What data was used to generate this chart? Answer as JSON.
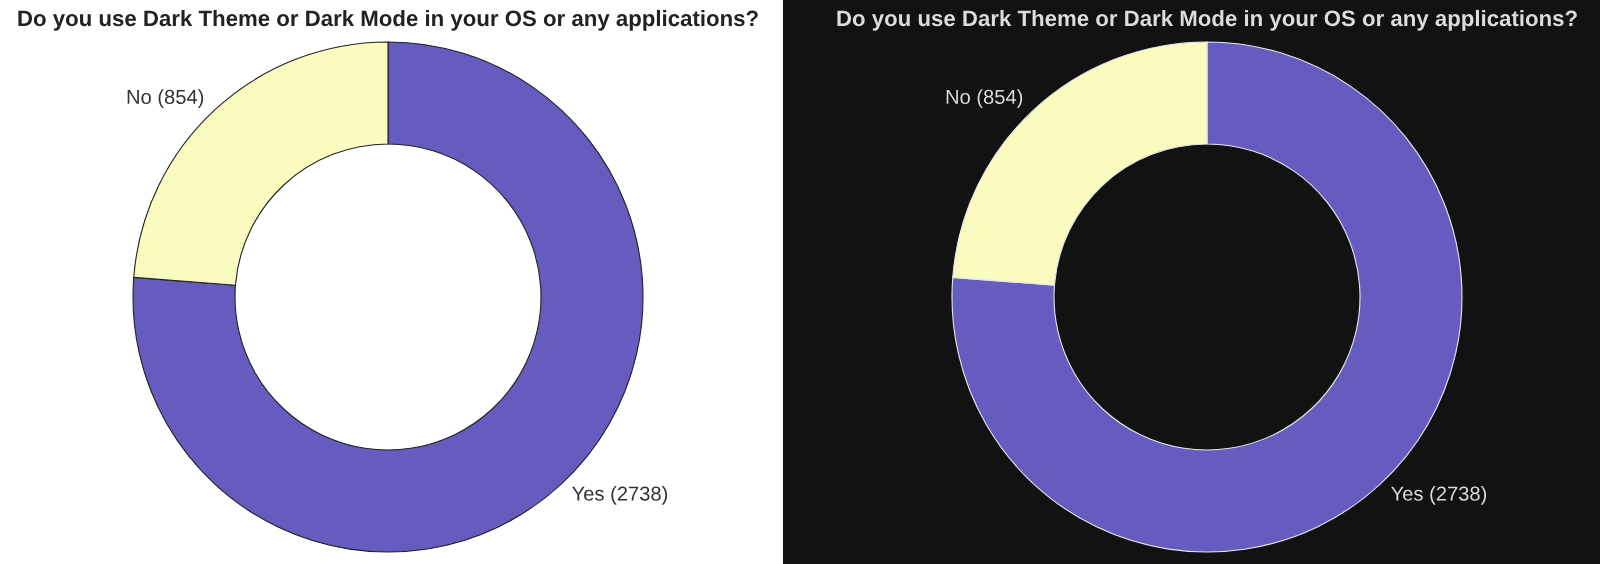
{
  "chart_data": [
    {
      "type": "donut",
      "title": "Do you use Dark Theme or Dark Mode in your OS or any applications?",
      "categories": [
        "Yes (2738)",
        "No (854)"
      ],
      "values": [
        2738,
        854
      ],
      "colors": [
        "#665cc0",
        "#fafbbe"
      ]
    },
    {
      "type": "donut",
      "title": "Do you use Dark Theme or Dark Mode in your OS or any applications?",
      "categories": [
        "Yes (2738)",
        "No (854)"
      ],
      "values": [
        2738,
        854
      ],
      "colors": [
        "#665cc0",
        "#fafbbe"
      ]
    }
  ]
}
